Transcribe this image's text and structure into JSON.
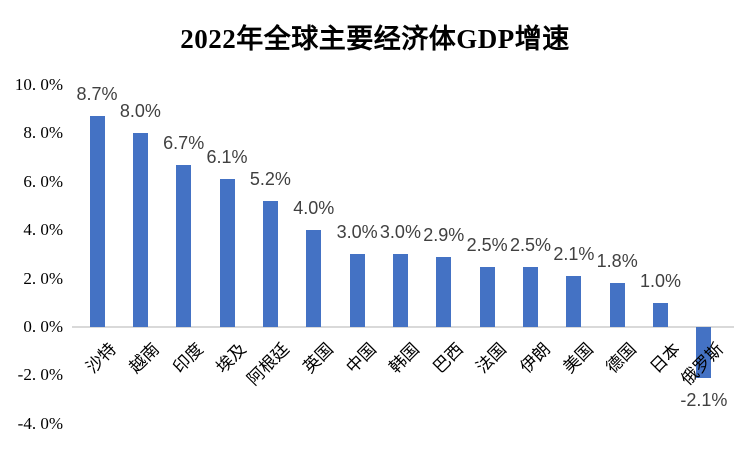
{
  "chart_data": {
    "type": "bar",
    "title": "2022年全球主要经济体GDP增速",
    "categories": [
      "沙特",
      "越南",
      "印度",
      "埃及",
      "阿根廷",
      "英国",
      "中国",
      "韩国",
      "巴西",
      "法国",
      "伊朗",
      "美国",
      "德国",
      "日本",
      "俄罗斯"
    ],
    "values": [
      8.7,
      8.0,
      6.7,
      6.1,
      5.2,
      4.0,
      3.0,
      3.0,
      2.9,
      2.5,
      2.5,
      2.1,
      1.8,
      1.0,
      -2.1
    ],
    "data_labels": [
      "8.7%",
      "8.0%",
      "6.7%",
      "6.1%",
      "5.2%",
      "4.0%",
      "3.0%",
      "3.0%",
      "2.9%",
      "2.5%",
      "2.5%",
      "2.1%",
      "1.8%",
      "1.0%",
      "-2.1%"
    ],
    "xlabel": "",
    "ylabel": "",
    "ylim": [
      -4,
      10
    ],
    "ytick_interval": 2,
    "yticks": [
      {
        "label": "10. 0%",
        "value": 10
      },
      {
        "label": "8. 0%",
        "value": 8
      },
      {
        "label": "6. 0%",
        "value": 6
      },
      {
        "label": "4. 0%",
        "value": 4
      },
      {
        "label": "2. 0%",
        "value": 2
      },
      {
        "label": "0. 0%",
        "value": 0
      },
      {
        "label": "-2. 0%",
        "value": -2
      },
      {
        "label": "-4. 0%",
        "value": -4
      }
    ],
    "grid": false,
    "legend": "none",
    "category_label_rotation_deg": 45
  },
  "colors": {
    "bar": "#4472C4",
    "data_label": "#404040",
    "axis_line": "#D9D9D9",
    "tick_label": "#000000",
    "title": "#000000",
    "background": "#FFFFFF"
  }
}
